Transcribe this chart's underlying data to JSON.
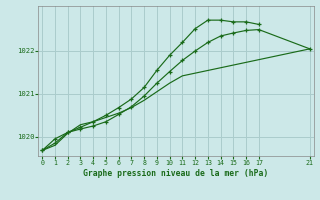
{
  "title": "Graphe pression niveau de la mer (hPa)",
  "bg_color": "#cce8e8",
  "grid_color": "#aacccc",
  "line_color": "#1a6b1a",
  "xlim": [
    -0.3,
    21.3
  ],
  "ylim": [
    1019.55,
    1023.05
  ],
  "yticks": [
    1020,
    1021,
    1022
  ],
  "xticks": [
    0,
    1,
    2,
    3,
    4,
    5,
    6,
    7,
    8,
    9,
    10,
    11,
    12,
    13,
    14,
    15,
    16,
    17,
    21
  ],
  "curve1_x": [
    0,
    1,
    2,
    3,
    4,
    5,
    6,
    7,
    8,
    9,
    10,
    11,
    12,
    13,
    14,
    15,
    16,
    17
  ],
  "curve1_y": [
    1019.68,
    1019.95,
    1020.1,
    1020.22,
    1020.35,
    1020.5,
    1020.68,
    1020.88,
    1021.15,
    1021.55,
    1021.9,
    1022.2,
    1022.52,
    1022.72,
    1022.72,
    1022.68,
    1022.68,
    1022.62
  ],
  "curve2_x": [
    0,
    1,
    2,
    3,
    4,
    5,
    6,
    7,
    8,
    9,
    10,
    11,
    12,
    13,
    14,
    15,
    16,
    17,
    21
  ],
  "curve2_y": [
    1019.68,
    1019.85,
    1020.1,
    1020.18,
    1020.25,
    1020.35,
    1020.52,
    1020.7,
    1020.95,
    1021.25,
    1021.52,
    1021.78,
    1022.0,
    1022.2,
    1022.35,
    1022.42,
    1022.48,
    1022.5,
    1022.05
  ],
  "curve3_x": [
    0,
    1,
    2,
    3,
    4,
    5,
    6,
    7,
    8,
    9,
    10,
    11,
    21
  ],
  "curve3_y": [
    1019.68,
    1019.8,
    1020.08,
    1020.28,
    1020.35,
    1020.45,
    1020.55,
    1020.68,
    1020.85,
    1021.05,
    1021.25,
    1021.42,
    1022.05
  ]
}
